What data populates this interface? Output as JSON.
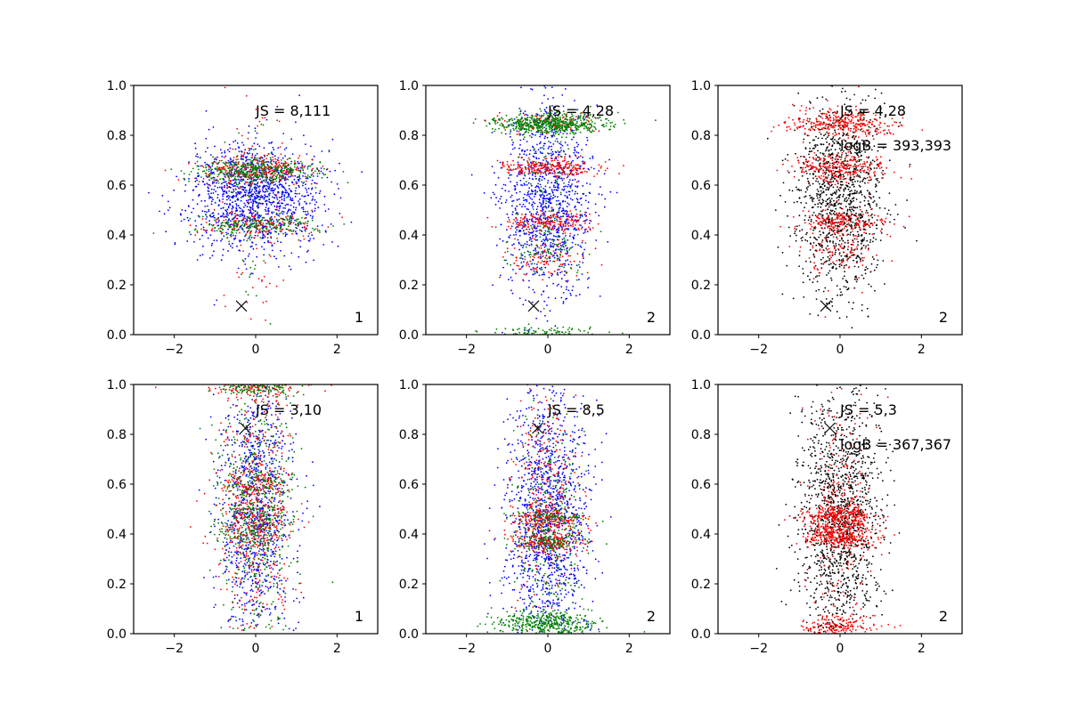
{
  "chart_data": [
    {
      "type": "scatter",
      "xlim": [
        -3,
        3
      ],
      "ylim": [
        0,
        1
      ],
      "xticks": [
        -2,
        0,
        2
      ],
      "yticks": [
        0.0,
        0.2,
        0.4,
        0.6,
        0.8,
        1.0
      ],
      "xtick_labels": [
        "−2",
        "0",
        "2"
      ],
      "ytick_labels": [
        "0.0",
        "0.2",
        "0.4",
        "0.6",
        "0.8",
        "1.0"
      ],
      "marker": {
        "x": -0.35,
        "y": 0.115
      },
      "annotations": [
        "JS = 8,111"
      ],
      "corner_label": "1",
      "series": [
        {
          "color": "#0000ff",
          "n": 1300,
          "clusters": [
            [
              0.55,
              0.11,
              0.8,
              1.0
            ]
          ]
        },
        {
          "color": "#ff0000",
          "n": 500,
          "clusters": [
            [
              0.66,
              0.03,
              0.75,
              0.55
            ],
            [
              0.44,
              0.025,
              0.75,
              0.3
            ],
            [
              0.55,
              0.25,
              0.4,
              0.15
            ]
          ]
        },
        {
          "color": "#008000",
          "n": 650,
          "clusters": [
            [
              0.655,
              0.025,
              0.75,
              0.6
            ],
            [
              0.44,
              0.02,
              0.75,
              0.3
            ],
            [
              0.55,
              0.25,
              0.35,
              0.1
            ]
          ]
        }
      ]
    },
    {
      "type": "scatter",
      "xlim": [
        -3,
        3
      ],
      "ylim": [
        0,
        1
      ],
      "xticks": [
        -2,
        0,
        2
      ],
      "yticks": [
        0.0,
        0.2,
        0.4,
        0.6,
        0.8,
        1.0
      ],
      "xtick_labels": [
        "−2",
        "0",
        "2"
      ],
      "ytick_labels": [
        "0.0",
        "0.2",
        "0.4",
        "0.6",
        "0.8",
        "1.0"
      ],
      "marker": {
        "x": -0.35,
        "y": 0.115
      },
      "annotations": [
        "JS = 4,28"
      ],
      "corner_label": "2",
      "series": [
        {
          "color": "#0000ff",
          "n": 1100,
          "clusters": [
            [
              0.55,
              0.19,
              0.55,
              1.0
            ]
          ]
        },
        {
          "color": "#ff0000",
          "n": 650,
          "clusters": [
            [
              0.67,
              0.02,
              0.6,
              0.4
            ],
            [
              0.45,
              0.02,
              0.55,
              0.3
            ],
            [
              0.85,
              0.02,
              0.6,
              0.15
            ],
            [
              0.3,
              0.05,
              0.45,
              0.15
            ]
          ]
        },
        {
          "color": "#008000",
          "n": 850,
          "clusters": [
            [
              0.845,
              0.02,
              0.7,
              0.65
            ],
            [
              0.01,
              0.01,
              0.8,
              0.12
            ],
            [
              0.33,
              0.04,
              0.4,
              0.1
            ],
            [
              0.55,
              0.2,
              0.35,
              0.13
            ]
          ]
        }
      ]
    },
    {
      "type": "scatter",
      "xlim": [
        -3,
        3
      ],
      "ylim": [
        0,
        1
      ],
      "xticks": [
        -2,
        0,
        2
      ],
      "yticks": [
        0.0,
        0.2,
        0.4,
        0.6,
        0.8,
        1.0
      ],
      "xtick_labels": [
        "−2",
        "0",
        "2"
      ],
      "ytick_labels": [
        "0.0",
        "0.2",
        "0.4",
        "0.6",
        "0.8",
        "1.0"
      ],
      "marker": {
        "x": -0.35,
        "y": 0.115
      },
      "annotations": [
        "JS = 4,28",
        "logB = 393,393"
      ],
      "corner_label": "2",
      "series": [
        {
          "color": "#000000",
          "n": 1200,
          "clusters": [
            [
              0.55,
              0.19,
              0.55,
              1.0
            ]
          ]
        },
        {
          "color": "#ff0000",
          "n": 900,
          "clusters": [
            [
              0.845,
              0.025,
              0.65,
              0.35
            ],
            [
              0.67,
              0.025,
              0.6,
              0.3
            ],
            [
              0.45,
              0.025,
              0.55,
              0.2
            ],
            [
              0.33,
              0.04,
              0.45,
              0.08
            ],
            [
              0.55,
              0.2,
              0.45,
              0.07
            ]
          ]
        }
      ]
    },
    {
      "type": "scatter",
      "xlim": [
        -3,
        3
      ],
      "ylim": [
        0,
        1
      ],
      "xticks": [
        -2,
        0,
        2
      ],
      "yticks": [
        0.0,
        0.2,
        0.4,
        0.6,
        0.8,
        1.0
      ],
      "xtick_labels": [
        "−2",
        "0",
        "2"
      ],
      "ytick_labels": [
        "0.0",
        "0.2",
        "0.4",
        "0.6",
        "0.8",
        "1.0"
      ],
      "marker": {
        "x": -0.25,
        "y": 0.825
      },
      "annotations": [
        "JS = 3,10"
      ],
      "corner_label": "1",
      "series": [
        {
          "color": "#0000ff",
          "n": 1000,
          "clusters": [
            [
              0.5,
              0.27,
              0.45,
              1.0
            ]
          ]
        },
        {
          "color": "#ff0000",
          "n": 850,
          "clusters": [
            [
              0.5,
              0.27,
              0.45,
              0.55
            ],
            [
              0.99,
              0.02,
              0.6,
              0.15
            ],
            [
              0.6,
              0.03,
              0.45,
              0.1
            ],
            [
              0.48,
              0.03,
              0.45,
              0.1
            ],
            [
              0.4,
              0.03,
              0.45,
              0.1
            ]
          ]
        },
        {
          "color": "#008000",
          "n": 850,
          "clusters": [
            [
              0.5,
              0.27,
              0.45,
              0.55
            ],
            [
              0.99,
              0.02,
              0.6,
              0.15
            ],
            [
              0.6,
              0.03,
              0.45,
              0.1
            ],
            [
              0.48,
              0.03,
              0.45,
              0.1
            ],
            [
              0.4,
              0.03,
              0.45,
              0.1
            ]
          ]
        }
      ]
    },
    {
      "type": "scatter",
      "xlim": [
        -3,
        3
      ],
      "ylim": [
        0,
        1
      ],
      "xticks": [
        -2,
        0,
        2
      ],
      "yticks": [
        0.0,
        0.2,
        0.4,
        0.6,
        0.8,
        1.0
      ],
      "xtick_labels": [
        "−2",
        "0",
        "2"
      ],
      "ytick_labels": [
        "0.0",
        "0.2",
        "0.4",
        "0.6",
        "0.8",
        "1.0"
      ],
      "marker": {
        "x": -0.25,
        "y": 0.825
      },
      "annotations": [
        "JS = 8,5"
      ],
      "corner_label": "2",
      "series": [
        {
          "color": "#0000ff",
          "n": 1300,
          "clusters": [
            [
              0.45,
              0.25,
              0.5,
              1.0
            ]
          ]
        },
        {
          "color": "#ff0000",
          "n": 700,
          "clusters": [
            [
              0.46,
              0.02,
              0.45,
              0.3
            ],
            [
              0.37,
              0.02,
              0.45,
              0.3
            ],
            [
              0.55,
              0.25,
              0.4,
              0.4
            ]
          ]
        },
        {
          "color": "#008000",
          "n": 850,
          "clusters": [
            [
              0.04,
              0.025,
              0.6,
              0.45
            ],
            [
              0.37,
              0.02,
              0.45,
              0.15
            ],
            [
              0.46,
              0.02,
              0.45,
              0.1
            ],
            [
              0.4,
              0.25,
              0.4,
              0.3
            ]
          ]
        }
      ]
    },
    {
      "type": "scatter",
      "xlim": [
        -3,
        3
      ],
      "ylim": [
        0,
        1
      ],
      "xticks": [
        -2,
        0,
        2
      ],
      "yticks": [
        0.0,
        0.2,
        0.4,
        0.6,
        0.8,
        1.0
      ],
      "xtick_labels": [
        "−2",
        "0",
        "2"
      ],
      "ytick_labels": [
        "0.0",
        "0.2",
        "0.4",
        "0.6",
        "0.8",
        "1.0"
      ],
      "marker": {
        "x": -0.25,
        "y": 0.825
      },
      "annotations": [
        "JS = 5,3",
        "logB = 367,367"
      ],
      "corner_label": "2",
      "series": [
        {
          "color": "#000000",
          "n": 1400,
          "clusters": [
            [
              0.45,
              0.26,
              0.5,
              1.0
            ]
          ]
        },
        {
          "color": "#ff0000",
          "n": 1000,
          "clusters": [
            [
              0.47,
              0.025,
              0.45,
              0.3
            ],
            [
              0.39,
              0.025,
              0.45,
              0.3
            ],
            [
              0.03,
              0.02,
              0.5,
              0.15
            ],
            [
              0.5,
              0.27,
              0.4,
              0.25
            ]
          ]
        }
      ]
    }
  ]
}
